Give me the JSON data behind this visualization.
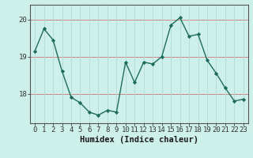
{
  "x": [
    0,
    1,
    2,
    3,
    4,
    5,
    6,
    7,
    8,
    9,
    10,
    11,
    12,
    13,
    14,
    15,
    16,
    17,
    18,
    19,
    20,
    21,
    22,
    23
  ],
  "y": [
    19.15,
    19.75,
    19.45,
    18.6,
    17.9,
    17.75,
    17.5,
    17.42,
    17.55,
    17.5,
    18.85,
    18.3,
    18.85,
    18.8,
    19.0,
    19.85,
    20.05,
    19.55,
    19.6,
    18.9,
    18.55,
    18.15,
    17.8,
    17.85
  ],
  "line_color": "#1e6b5e",
  "marker": "D",
  "marker_size": 2.2,
  "bg_color": "#cef0ea",
  "xlabel": "Humidex (Indice chaleur)",
  "xlim": [
    -0.5,
    23.5
  ],
  "ylim": [
    17.2,
    20.4
  ],
  "yticks": [
    18,
    19,
    20
  ],
  "xticks": [
    0,
    1,
    2,
    3,
    4,
    5,
    6,
    7,
    8,
    9,
    10,
    11,
    12,
    13,
    14,
    15,
    16,
    17,
    18,
    19,
    20,
    21,
    22,
    23
  ],
  "xlabel_fontsize": 7.5,
  "tick_fontsize": 6.5,
  "line_width": 1.0,
  "hline_color": "#d08888",
  "vline_color": "#b8dcd6"
}
